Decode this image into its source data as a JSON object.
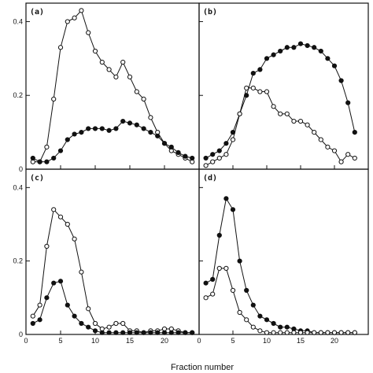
{
  "chart_data": [
    {
      "panel_label": "(a)",
      "type": "line",
      "xlim": [
        0,
        25
      ],
      "ylim": [
        0,
        0.45
      ],
      "x_ticks": [
        0,
        5,
        10,
        15,
        20
      ],
      "x_tick_labels": [
        "",
        "",
        "",
        "",
        ""
      ],
      "y_ticks": [
        0,
        0.2,
        0.4
      ],
      "y_tick_labels": [
        "0",
        "0.2",
        "0.4"
      ],
      "series": [
        {
          "marker": "open-circle",
          "x": [
            1,
            2,
            3,
            4,
            5,
            6,
            7,
            8,
            9,
            10,
            11,
            12,
            13,
            14,
            15,
            16,
            17,
            18,
            19,
            20,
            21,
            22,
            23,
            24
          ],
          "y": [
            0.02,
            0.02,
            0.06,
            0.19,
            0.33,
            0.4,
            0.41,
            0.43,
            0.37,
            0.32,
            0.29,
            0.27,
            0.25,
            0.29,
            0.25,
            0.21,
            0.19,
            0.14,
            0.1,
            0.07,
            0.05,
            0.04,
            0.03,
            0.02
          ]
        },
        {
          "marker": "filled-circle",
          "x": [
            1,
            2,
            3,
            4,
            5,
            6,
            7,
            8,
            9,
            10,
            11,
            12,
            13,
            14,
            15,
            16,
            17,
            18,
            19,
            20,
            21,
            22,
            23,
            24
          ],
          "y": [
            0.03,
            0.02,
            0.02,
            0.03,
            0.05,
            0.08,
            0.095,
            0.1,
            0.11,
            0.11,
            0.11,
            0.105,
            0.11,
            0.13,
            0.125,
            0.12,
            0.11,
            0.1,
            0.09,
            0.07,
            0.06,
            0.045,
            0.035,
            0.03
          ]
        }
      ]
    },
    {
      "panel_label": "(b)",
      "type": "line",
      "xlim": [
        0,
        25
      ],
      "ylim": [
        0,
        0.45
      ],
      "x_ticks": [
        0,
        5,
        10,
        15,
        20
      ],
      "x_tick_labels": [
        "",
        "",
        "",
        "",
        ""
      ],
      "y_ticks": [
        0,
        0.2,
        0.4
      ],
      "y_tick_labels": [
        "",
        "",
        ""
      ],
      "series": [
        {
          "marker": "filled-circle",
          "x": [
            1,
            2,
            3,
            4,
            5,
            6,
            7,
            8,
            9,
            10,
            11,
            12,
            13,
            14,
            15,
            16,
            17,
            18,
            19,
            20,
            21,
            22,
            23
          ],
          "y": [
            0.03,
            0.04,
            0.05,
            0.07,
            0.1,
            0.15,
            0.2,
            0.26,
            0.27,
            0.3,
            0.31,
            0.32,
            0.33,
            0.33,
            0.34,
            0.335,
            0.33,
            0.32,
            0.3,
            0.28,
            0.24,
            0.18,
            0.1
          ]
        },
        {
          "marker": "open-circle",
          "x": [
            1,
            2,
            3,
            4,
            5,
            6,
            7,
            8,
            9,
            10,
            11,
            12,
            13,
            14,
            15,
            16,
            17,
            18,
            19,
            20,
            21,
            22,
            23
          ],
          "y": [
            0.01,
            0.02,
            0.03,
            0.04,
            0.08,
            0.15,
            0.22,
            0.22,
            0.21,
            0.21,
            0.17,
            0.15,
            0.15,
            0.13,
            0.13,
            0.12,
            0.1,
            0.08,
            0.06,
            0.05,
            0.02,
            0.04,
            0.03
          ]
        }
      ]
    },
    {
      "panel_label": "(c)",
      "type": "line",
      "xlim": [
        0,
        25
      ],
      "ylim": [
        0,
        0.45
      ],
      "x_ticks": [
        0,
        5,
        10,
        15,
        20
      ],
      "x_tick_labels": [
        "0",
        "5",
        "10",
        "15",
        "20"
      ],
      "y_ticks": [
        0,
        0.2,
        0.4
      ],
      "y_tick_labels": [
        "0",
        "0.2",
        "0.4"
      ],
      "series": [
        {
          "marker": "open-circle",
          "x": [
            1,
            2,
            3,
            4,
            5,
            6,
            7,
            8,
            9,
            10,
            11,
            12,
            13,
            14,
            15,
            16,
            17,
            18,
            19,
            20,
            21,
            22,
            23,
            24
          ],
          "y": [
            0.05,
            0.08,
            0.24,
            0.34,
            0.32,
            0.3,
            0.26,
            0.17,
            0.07,
            0.03,
            0.015,
            0.02,
            0.03,
            0.03,
            0.01,
            0.01,
            0.005,
            0.01,
            0.01,
            0.015,
            0.015,
            0.01,
            0.005,
            0.005
          ]
        },
        {
          "marker": "filled-circle",
          "x": [
            1,
            2,
            3,
            4,
            5,
            6,
            7,
            8,
            9,
            10,
            11,
            12,
            13,
            14,
            15,
            16,
            17,
            18,
            19,
            20,
            21,
            22,
            23,
            24
          ],
          "y": [
            0.03,
            0.04,
            0.1,
            0.14,
            0.145,
            0.08,
            0.05,
            0.03,
            0.02,
            0.01,
            0.005,
            0.005,
            0.005,
            0.005,
            0.005,
            0.005,
            0.005,
            0.005,
            0.005,
            0.005,
            0.005,
            0.005,
            0.005,
            0.005
          ]
        }
      ]
    },
    {
      "panel_label": "(d)",
      "type": "line",
      "xlim": [
        0,
        25
      ],
      "ylim": [
        0,
        0.45
      ],
      "x_ticks": [
        0,
        5,
        10,
        15,
        20
      ],
      "x_tick_labels": [
        "0",
        "5",
        "10",
        "15",
        "20"
      ],
      "y_ticks": [
        0,
        0.2,
        0.4
      ],
      "y_tick_labels": [
        "",
        "",
        ""
      ],
      "series": [
        {
          "marker": "filled-circle",
          "x": [
            1,
            2,
            3,
            4,
            5,
            6,
            7,
            8,
            9,
            10,
            11,
            12,
            13,
            14,
            15,
            16,
            17,
            18,
            19,
            20,
            21,
            22,
            23
          ],
          "y": [
            0.14,
            0.15,
            0.27,
            0.37,
            0.34,
            0.2,
            0.12,
            0.08,
            0.05,
            0.04,
            0.03,
            0.02,
            0.02,
            0.015,
            0.01,
            0.01,
            0.005,
            0.005,
            0.005,
            0.005,
            0.005,
            0.005,
            0.005
          ]
        },
        {
          "marker": "open-circle",
          "x": [
            1,
            2,
            3,
            4,
            5,
            6,
            7,
            8,
            9,
            10,
            11,
            12,
            13,
            14,
            15,
            16,
            17,
            18,
            19,
            20,
            21,
            22,
            23
          ],
          "y": [
            0.1,
            0.11,
            0.18,
            0.18,
            0.12,
            0.06,
            0.04,
            0.02,
            0.01,
            0.005,
            0.005,
            0.005,
            0.005,
            0.005,
            0.005,
            0.005,
            0.005,
            0.005,
            0.005,
            0.005,
            0.005,
            0.005,
            0.005
          ]
        }
      ]
    }
  ],
  "xlabel": "Fraction number"
}
